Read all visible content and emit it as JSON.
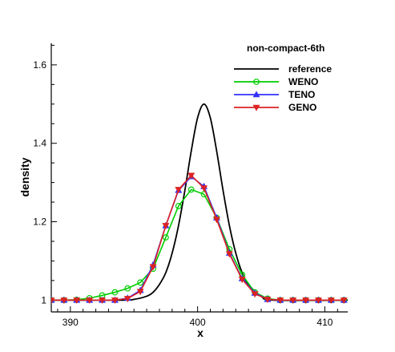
{
  "chart_data": {
    "type": "line",
    "title": "",
    "legend_title": "non-compact-6th",
    "legend_placement": "top-right",
    "xlabel": "x",
    "ylabel": "density",
    "xlim": [
      388.5,
      411.8
    ],
    "ylim": [
      0.97,
      1.655
    ],
    "xticks": [
      390,
      400,
      410
    ],
    "yticks": [
      1,
      1.2,
      1.4,
      1.6
    ],
    "ytick_labels": [
      "1",
      "1.2",
      "1.4",
      "1.6"
    ],
    "grid": false,
    "series": [
      {
        "name": "reference",
        "color": "#000000",
        "marker": "none",
        "x": [
          388.5,
          394,
          395,
          396,
          396.5,
          397,
          397.5,
          398,
          398.5,
          399,
          399.5,
          400,
          400.5,
          401,
          401.5,
          402,
          402.5,
          403,
          403.5,
          404,
          405,
          406,
          411.8
        ],
        "y": [
          1.0,
          1.0,
          1.002,
          1.01,
          1.02,
          1.04,
          1.07,
          1.12,
          1.19,
          1.28,
          1.38,
          1.465,
          1.5,
          1.465,
          1.38,
          1.28,
          1.19,
          1.12,
          1.07,
          1.04,
          1.01,
          1.0,
          1.0
        ]
      },
      {
        "name": "WENO",
        "color": "#00cc00",
        "marker": "circle",
        "x": [
          388.5,
          389.5,
          390.5,
          391.5,
          392.5,
          393.5,
          394.5,
          395.5,
          396.5,
          397.5,
          398.5,
          399.5,
          400.5,
          401.5,
          402.5,
          403.5,
          404.5,
          405.5,
          406.5,
          407.5,
          408.5,
          409.5,
          410.5,
          411.5
        ],
        "y": [
          1.0,
          1.0,
          1.001,
          1.005,
          1.012,
          1.02,
          1.03,
          1.045,
          1.08,
          1.16,
          1.24,
          1.282,
          1.27,
          1.21,
          1.13,
          1.065,
          1.02,
          1.004,
          1.0,
          1.0,
          1.0,
          1.0,
          1.0,
          1.0
        ]
      },
      {
        "name": "TENO",
        "color": "#3333ff",
        "marker": "triangle-up",
        "x": [
          388.5,
          389.5,
          390.5,
          391.5,
          392.5,
          393.5,
          394.5,
          395.5,
          396.5,
          397.5,
          398.5,
          399.5,
          400.5,
          401.5,
          402.5,
          403.5,
          404.5,
          405.5,
          406.5,
          407.5,
          408.5,
          409.5,
          410.5,
          411.5
        ],
        "y": [
          1.0,
          1.0,
          1.0,
          1.0,
          1.0,
          1.0,
          1.005,
          1.025,
          1.09,
          1.19,
          1.28,
          1.315,
          1.29,
          1.21,
          1.12,
          1.055,
          1.018,
          1.002,
          1.0,
          1.0,
          1.0,
          1.0,
          1.0,
          1.0
        ]
      },
      {
        "name": "GENO",
        "color": "#dd2222",
        "marker": "triangle-down",
        "x": [
          388.5,
          389.5,
          390.5,
          391.5,
          392.5,
          393.5,
          394.5,
          395.5,
          396.5,
          397.5,
          398.5,
          399.5,
          400.5,
          401.5,
          402.5,
          403.5,
          404.5,
          405.5,
          406.5,
          407.5,
          408.5,
          409.5,
          410.5,
          411.5
        ],
        "y": [
          1.0,
          1.0,
          1.0,
          1.0,
          1.0,
          1.0,
          1.004,
          1.022,
          1.085,
          1.19,
          1.282,
          1.318,
          1.286,
          1.206,
          1.118,
          1.053,
          1.016,
          1.002,
          1.0,
          1.0,
          1.0,
          1.0,
          1.0,
          1.0
        ]
      }
    ]
  }
}
